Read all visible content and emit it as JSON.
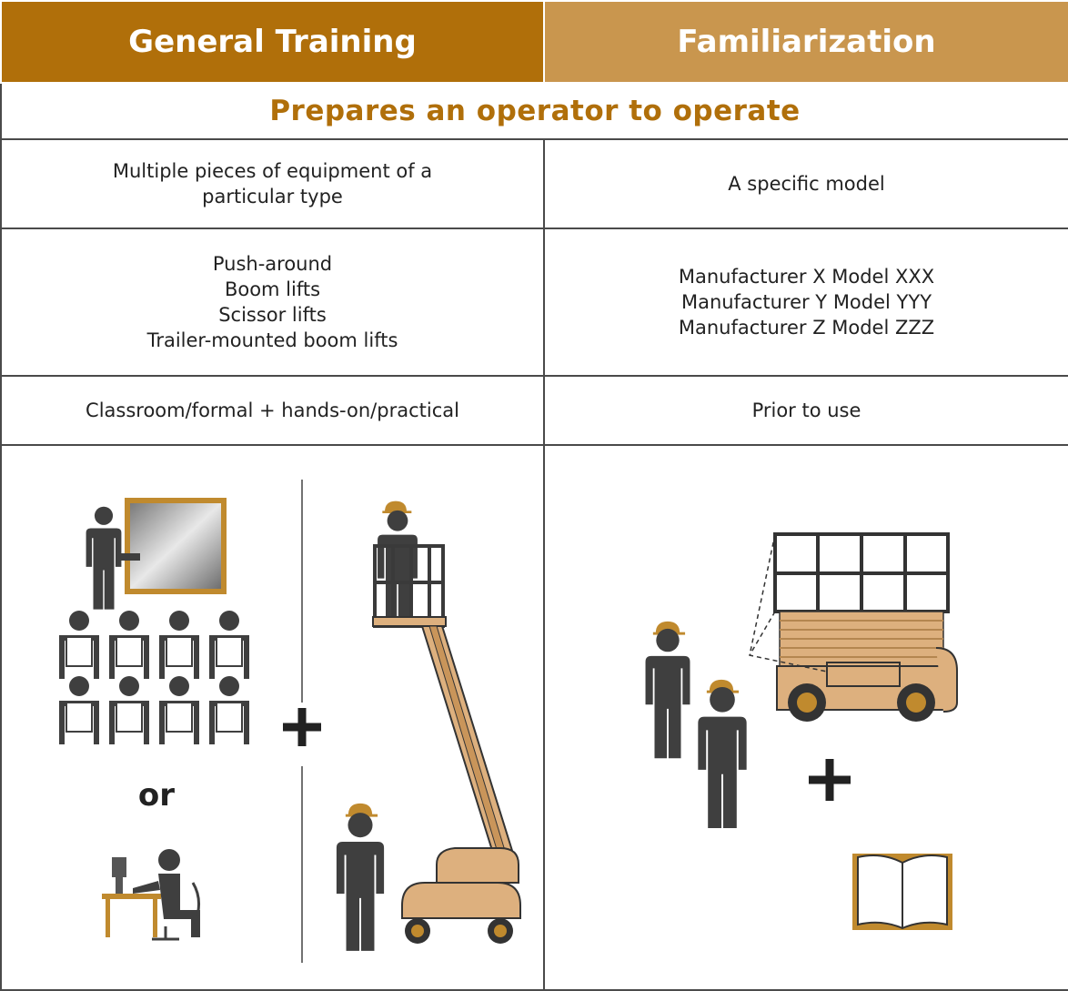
{
  "header": {
    "columns": [
      "General Training",
      "Familiarization"
    ]
  },
  "subheader": "Prepares an operator to operate",
  "table": {
    "rows": [
      [
        "Multiple pieces of equipment of a particular type",
        "A specific model"
      ],
      [
        [
          "Push-around",
          "Boom lifts",
          "Scissor lifts",
          "Trailer-mounted boom lifts"
        ],
        [
          "Manufacturer X Model XXX",
          "Manufacturer Y Model YYY",
          "Manufacturer Z Model ZZZ"
        ]
      ],
      [
        "Classroom/formal + hands-on/practical",
        "Prior to use"
      ]
    ]
  },
  "illustration": {
    "or": "or"
  }
}
